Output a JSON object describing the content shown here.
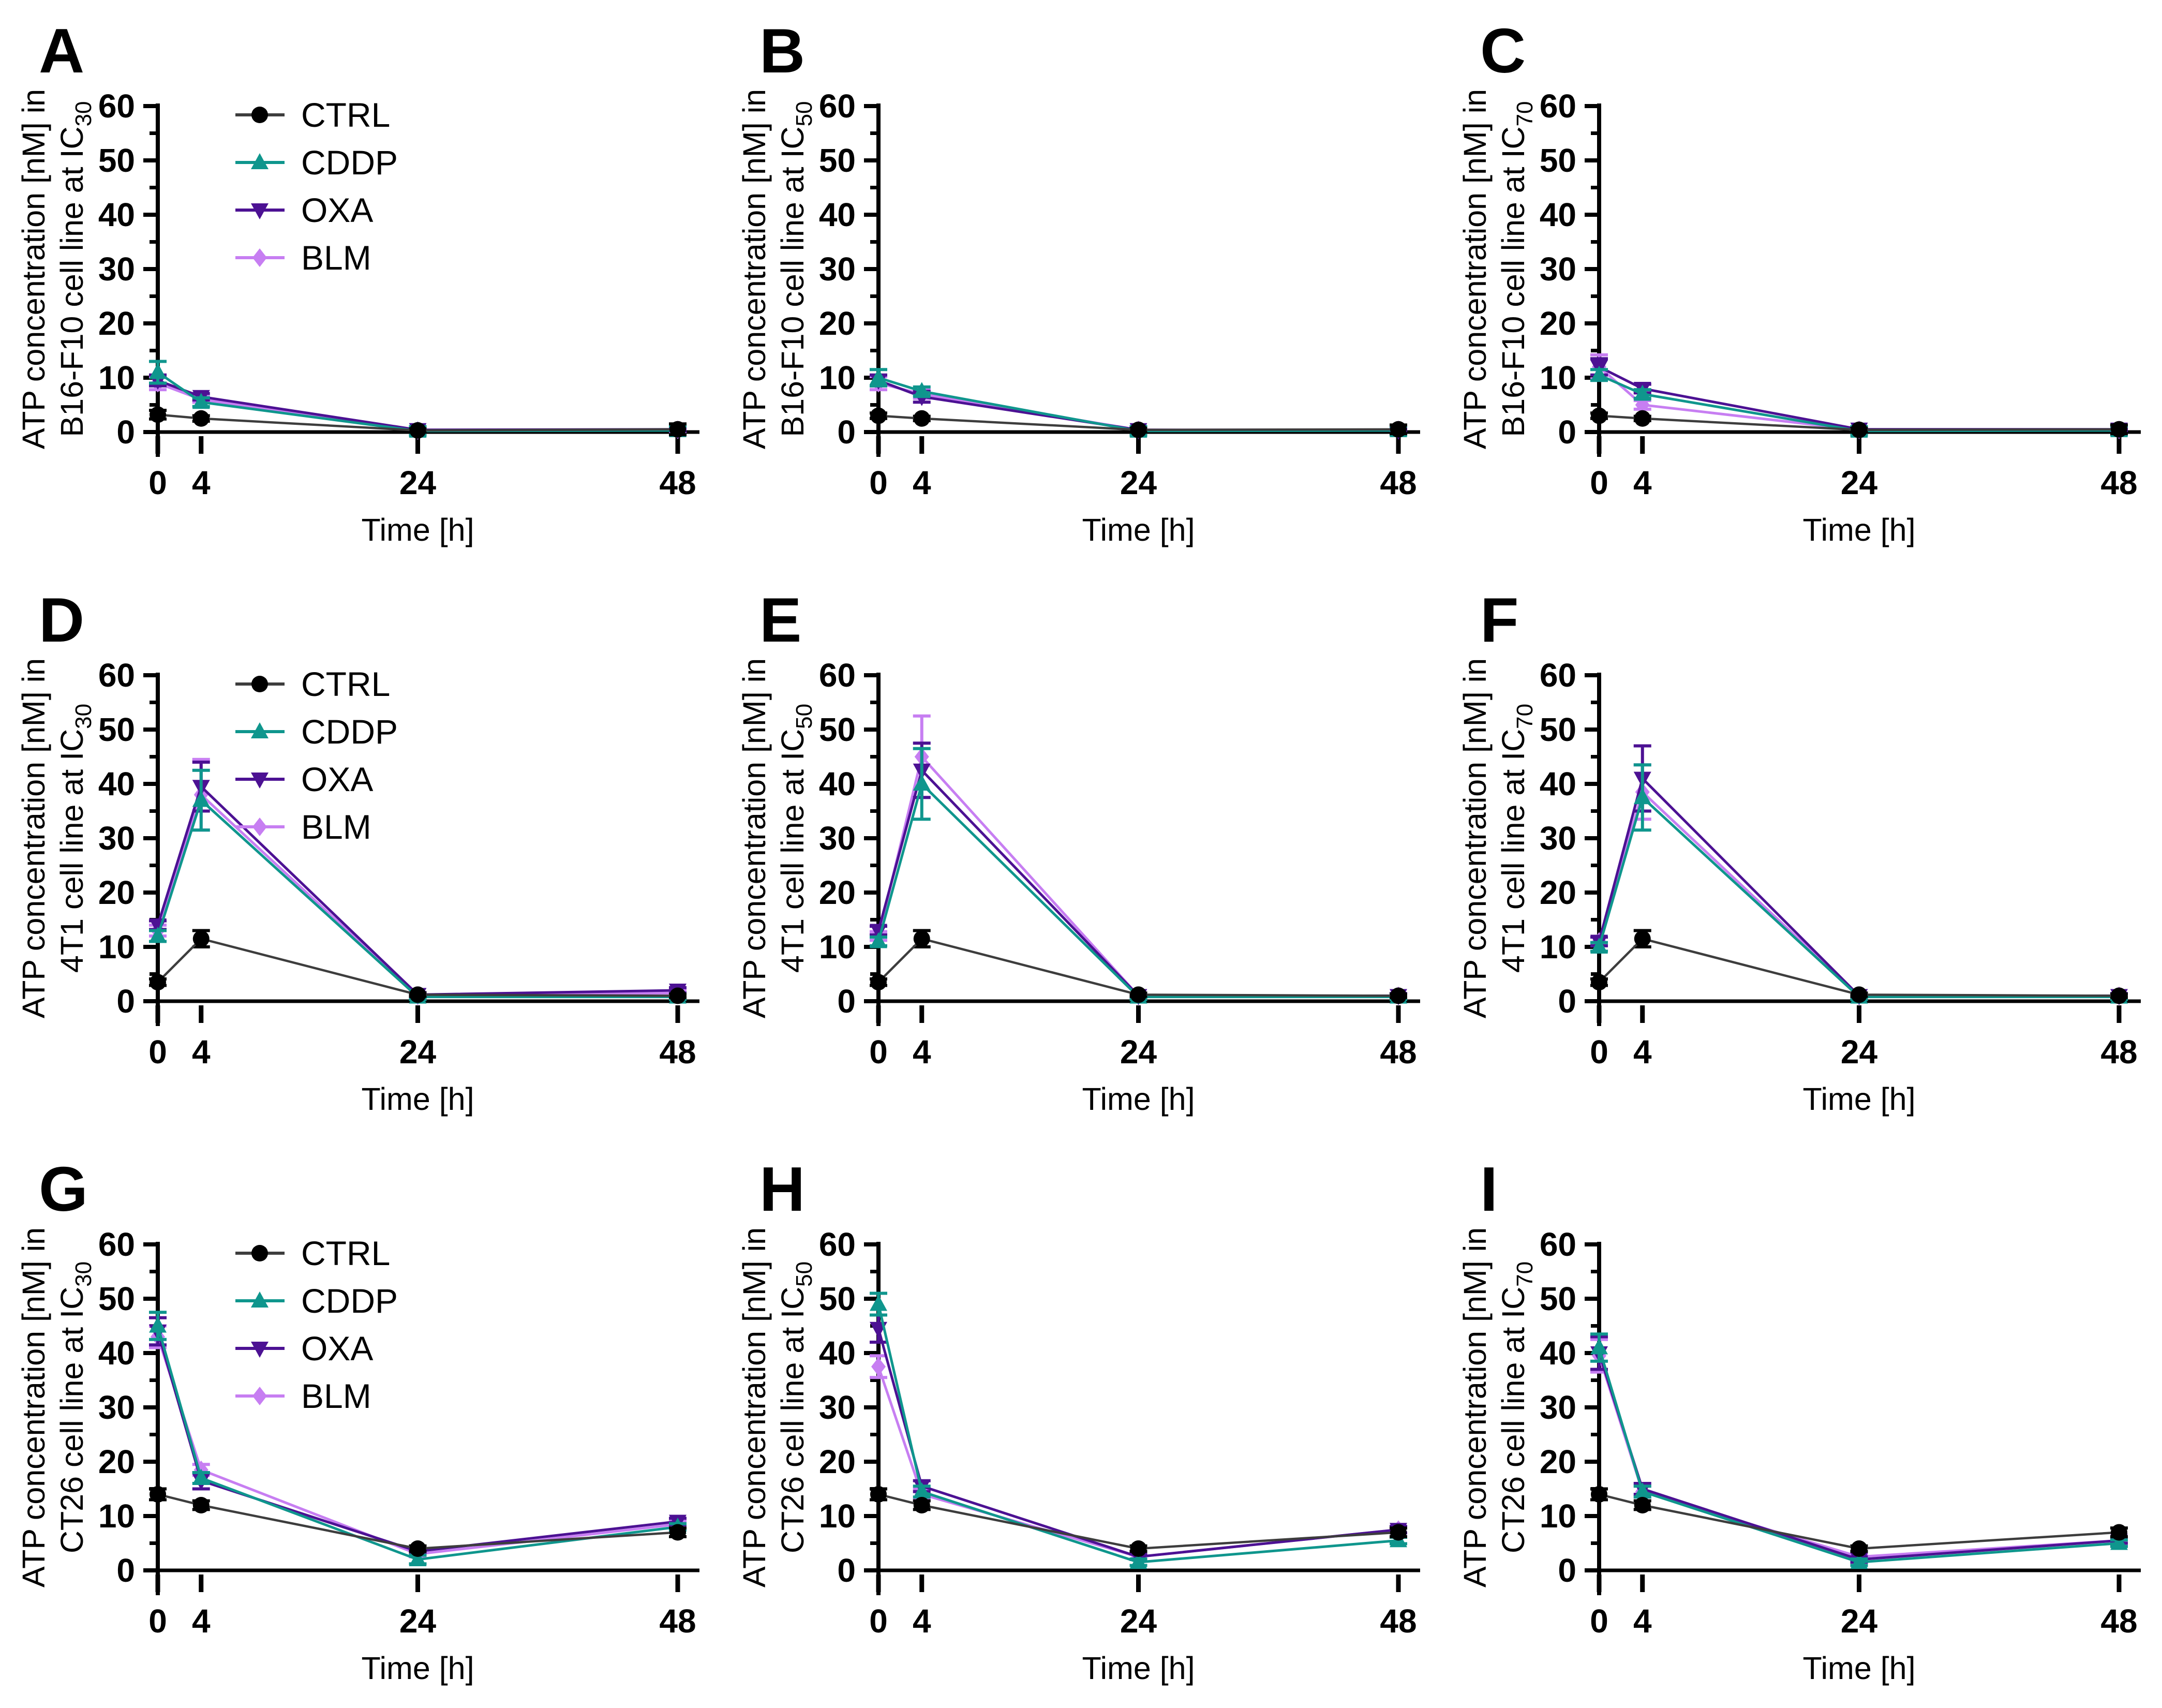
{
  "figure": {
    "background": "#ffffff",
    "xlabel": "Time [h]",
    "legend_items": [
      {
        "label": "CTRL",
        "color": "#000000",
        "marker": "circle"
      },
      {
        "label": "CDDP",
        "color": "#0f968d",
        "marker": "triangle-up"
      },
      {
        "label": "OXA",
        "color": "#4c1193",
        "marker": "triangle-down"
      },
      {
        "label": "BLM",
        "color": "#c77ef2",
        "marker": "diamond"
      }
    ]
  },
  "chart_data": [
    {
      "type": "line",
      "panel": "A",
      "ylabel_line1": "ATP concentration [nM] in",
      "ylabel_line2": "B16-F10 cell line at IC",
      "ic_subscript": "30",
      "xlabel": "Time [h]",
      "x": [
        0,
        4,
        24,
        48
      ],
      "xlim": [
        0,
        48
      ],
      "ylim": [
        0,
        60
      ],
      "yticks": [
        0,
        10,
        20,
        30,
        40,
        50,
        60
      ],
      "xticks": [
        0,
        4,
        24,
        48
      ],
      "legend": true,
      "series": [
        {
          "name": "CTRL",
          "marker": "circle",
          "color": "#000000",
          "line_color": "#3d3d3d",
          "values": [
            3.2,
            2.5,
            0.3,
            0.5
          ],
          "errors": [
            0.8,
            0.5,
            0.3,
            1.0
          ]
        },
        {
          "name": "CDDP",
          "marker": "triangle-up",
          "color": "#0f968d",
          "values": [
            11.0,
            5.5,
            0.2,
            0.3
          ],
          "errors": [
            2.0,
            0.8,
            0.8,
            0.8
          ]
        },
        {
          "name": "OXA",
          "marker": "triangle-down",
          "color": "#4c1193",
          "values": [
            9.5,
            6.5,
            0.4,
            0.5
          ],
          "errors": [
            1.0,
            0.6,
            0.3,
            0.3
          ]
        },
        {
          "name": "BLM",
          "marker": "diamond",
          "color": "#c77ef2",
          "values": [
            9.0,
            6.0,
            0.3,
            0.4
          ],
          "errors": [
            1.2,
            0.5,
            0.3,
            0.3
          ]
        }
      ]
    },
    {
      "type": "line",
      "panel": "B",
      "ylabel_line1": "ATP concentration [nM] in",
      "ylabel_line2": "B16-F10 cell line at IC",
      "ic_subscript": "50",
      "xlabel": "Time [h]",
      "x": [
        0,
        4,
        24,
        48
      ],
      "xlim": [
        0,
        48
      ],
      "ylim": [
        0,
        60
      ],
      "yticks": [
        0,
        10,
        20,
        30,
        40,
        50,
        60
      ],
      "xticks": [
        0,
        4,
        24,
        48
      ],
      "legend": false,
      "series": [
        {
          "name": "CTRL",
          "marker": "circle",
          "color": "#000000",
          "line_color": "#3d3d3d",
          "values": [
            3.0,
            2.5,
            0.4,
            0.5
          ],
          "errors": [
            0.5,
            0.4,
            0.3,
            0.8
          ]
        },
        {
          "name": "CDDP",
          "marker": "triangle-up",
          "color": "#0f968d",
          "values": [
            10.0,
            7.5,
            0.2,
            0.3
          ],
          "errors": [
            1.5,
            0.8,
            0.8,
            0.8
          ]
        },
        {
          "name": "OXA",
          "marker": "triangle-down",
          "color": "#4c1193",
          "values": [
            9.5,
            6.5,
            0.4,
            0.3
          ],
          "errors": [
            1.0,
            1.0,
            0.3,
            0.3
          ]
        },
        {
          "name": "BLM",
          "marker": "diamond",
          "color": "#c77ef2",
          "values": [
            9.0,
            7.0,
            0.4,
            0.4
          ],
          "errors": [
            1.2,
            0.8,
            0.3,
            0.3
          ]
        }
      ]
    },
    {
      "type": "line",
      "panel": "C",
      "ylabel_line1": "ATP concentration [nM] in",
      "ylabel_line2": "B16-F10 cell line at IC",
      "ic_subscript": "70",
      "xlabel": "Time [h]",
      "x": [
        0,
        4,
        24,
        48
      ],
      "xlim": [
        0,
        48
      ],
      "ylim": [
        0,
        60
      ],
      "yticks": [
        0,
        10,
        20,
        30,
        40,
        50,
        60
      ],
      "xticks": [
        0,
        4,
        24,
        48
      ],
      "legend": false,
      "series": [
        {
          "name": "CTRL",
          "marker": "circle",
          "color": "#000000",
          "line_color": "#3d3d3d",
          "values": [
            3.0,
            2.5,
            0.4,
            0.5
          ],
          "errors": [
            0.5,
            0.4,
            0.3,
            0.8
          ]
        },
        {
          "name": "CDDP",
          "marker": "triangle-up",
          "color": "#0f968d",
          "values": [
            10.5,
            7.0,
            0.2,
            0.3
          ],
          "errors": [
            1.0,
            0.8,
            0.8,
            0.8
          ]
        },
        {
          "name": "OXA",
          "marker": "triangle-down",
          "color": "#4c1193",
          "values": [
            12.0,
            8.0,
            0.5,
            0.5
          ],
          "errors": [
            1.5,
            0.8,
            0.3,
            0.3
          ]
        },
        {
          "name": "BLM",
          "marker": "diamond",
          "color": "#c77ef2",
          "values": [
            12.0,
            5.0,
            0.4,
            0.4
          ],
          "errors": [
            2.2,
            0.8,
            0.3,
            0.3
          ]
        }
      ]
    },
    {
      "type": "line",
      "panel": "D",
      "ylabel_line1": "ATP concentration [nM] in",
      "ylabel_line2": "4T1 cell line at IC",
      "ic_subscript": "30",
      "xlabel": "Time [h]",
      "x": [
        0,
        4,
        24,
        48
      ],
      "xlim": [
        0,
        48
      ],
      "ylim": [
        0,
        60
      ],
      "yticks": [
        0,
        10,
        20,
        30,
        40,
        50,
        60
      ],
      "xticks": [
        0,
        4,
        24,
        48
      ],
      "legend": true,
      "series": [
        {
          "name": "CTRL",
          "marker": "circle",
          "color": "#000000",
          "line_color": "#3d3d3d",
          "values": [
            3.5,
            11.5,
            1.2,
            1.0
          ],
          "errors": [
            0.6,
            1.5,
            0.3,
            0.3
          ]
        },
        {
          "name": "CDDP",
          "marker": "triangle-up",
          "color": "#0f968d",
          "values": [
            12.0,
            37.0,
            0.8,
            0.8
          ],
          "errors": [
            1.0,
            5.5,
            0.5,
            0.5
          ]
        },
        {
          "name": "OXA",
          "marker": "triangle-down",
          "color": "#4c1193",
          "values": [
            14.0,
            39.5,
            1.2,
            2.0
          ],
          "errors": [
            0.8,
            4.5,
            0.4,
            0.5
          ]
        },
        {
          "name": "BLM",
          "marker": "diamond",
          "color": "#c77ef2",
          "values": [
            13.0,
            38.0,
            1.0,
            1.5
          ],
          "errors": [
            1.0,
            6.5,
            0.4,
            0.5
          ]
        }
      ]
    },
    {
      "type": "line",
      "panel": "E",
      "ylabel_line1": "ATP concentration [nM] in",
      "ylabel_line2": "4T1 cell line at IC",
      "ic_subscript": "50",
      "xlabel": "Time [h]",
      "x": [
        0,
        4,
        24,
        48
      ],
      "xlim": [
        0,
        48
      ],
      "ylim": [
        0,
        60
      ],
      "yticks": [
        0,
        10,
        20,
        30,
        40,
        50,
        60
      ],
      "xticks": [
        0,
        4,
        24,
        48
      ],
      "legend": false,
      "series": [
        {
          "name": "CTRL",
          "marker": "circle",
          "color": "#000000",
          "line_color": "#3d3d3d",
          "values": [
            3.5,
            11.5,
            1.2,
            1.0
          ],
          "errors": [
            0.6,
            1.5,
            0.3,
            0.3
          ]
        },
        {
          "name": "CDDP",
          "marker": "triangle-up",
          "color": "#0f968d",
          "values": [
            11.0,
            40.0,
            0.8,
            0.8
          ],
          "errors": [
            0.8,
            6.5,
            0.5,
            0.5
          ]
        },
        {
          "name": "OXA",
          "marker": "triangle-down",
          "color": "#4c1193",
          "values": [
            13.0,
            42.5,
            1.0,
            1.0
          ],
          "errors": [
            0.8,
            5.0,
            0.4,
            0.4
          ]
        },
        {
          "name": "BLM",
          "marker": "diamond",
          "color": "#c77ef2",
          "values": [
            12.0,
            45.0,
            1.0,
            1.0
          ],
          "errors": [
            0.8,
            7.5,
            0.4,
            0.4
          ]
        }
      ]
    },
    {
      "type": "line",
      "panel": "F",
      "ylabel_line1": "ATP concentration [nM] in",
      "ylabel_line2": "4T1 cell line at IC",
      "ic_subscript": "70",
      "xlabel": "Time [h]",
      "x": [
        0,
        4,
        24,
        48
      ],
      "xlim": [
        0,
        48
      ],
      "ylim": [
        0,
        60
      ],
      "yticks": [
        0,
        10,
        20,
        30,
        40,
        50,
        60
      ],
      "xticks": [
        0,
        4,
        24,
        48
      ],
      "legend": false,
      "series": [
        {
          "name": "CTRL",
          "marker": "circle",
          "color": "#000000",
          "line_color": "#3d3d3d",
          "values": [
            3.5,
            11.5,
            1.2,
            1.0
          ],
          "errors": [
            0.6,
            1.5,
            0.3,
            0.3
          ]
        },
        {
          "name": "CDDP",
          "marker": "triangle-up",
          "color": "#0f968d",
          "values": [
            10.0,
            37.5,
            0.8,
            0.8
          ],
          "errors": [
            0.8,
            6.0,
            0.5,
            0.5
          ]
        },
        {
          "name": "OXA",
          "marker": "triangle-down",
          "color": "#4c1193",
          "values": [
            11.0,
            41.0,
            1.0,
            1.0
          ],
          "errors": [
            0.8,
            6.0,
            0.4,
            0.4
          ]
        },
        {
          "name": "BLM",
          "marker": "diamond",
          "color": "#c77ef2",
          "values": [
            11.0,
            38.5,
            1.0,
            1.0
          ],
          "errors": [
            0.8,
            5.0,
            0.4,
            0.4
          ]
        }
      ]
    },
    {
      "type": "line",
      "panel": "G",
      "ylabel_line1": "ATP concentration [nM] in",
      "ylabel_line2": "CT26 cell line at IC",
      "ic_subscript": "30",
      "xlabel": "Time [h]",
      "x": [
        0,
        4,
        24,
        48
      ],
      "xlim": [
        0,
        48
      ],
      "ylim": [
        0,
        60
      ],
      "yticks": [
        0,
        10,
        20,
        30,
        40,
        50,
        60
      ],
      "xticks": [
        0,
        4,
        24,
        48
      ],
      "legend": true,
      "series": [
        {
          "name": "CTRL",
          "marker": "circle",
          "color": "#000000",
          "line_color": "#3d3d3d",
          "values": [
            14.0,
            12.0,
            4.0,
            7.0
          ],
          "errors": [
            1.0,
            0.8,
            0.5,
            0.8
          ]
        },
        {
          "name": "CDDP",
          "marker": "triangle-up",
          "color": "#0f968d",
          "values": [
            45.0,
            17.0,
            2.0,
            8.0
          ],
          "errors": [
            2.5,
            1.0,
            0.8,
            0.6
          ]
        },
        {
          "name": "OXA",
          "marker": "triangle-down",
          "color": "#4c1193",
          "values": [
            44.0,
            16.5,
            3.5,
            9.0
          ],
          "errors": [
            2.5,
            1.5,
            0.5,
            0.6
          ]
        },
        {
          "name": "BLM",
          "marker": "diamond",
          "color": "#c77ef2",
          "values": [
            43.0,
            18.5,
            3.0,
            8.5
          ],
          "errors": [
            2.0,
            1.0,
            0.5,
            0.6
          ]
        }
      ]
    },
    {
      "type": "line",
      "panel": "H",
      "ylabel_line1": "ATP concentration [nM] in",
      "ylabel_line2": "CT26 cell line at IC",
      "ic_subscript": "50",
      "xlabel": "Time [h]",
      "x": [
        0,
        4,
        24,
        48
      ],
      "xlim": [
        0,
        48
      ],
      "ylim": [
        0,
        60
      ],
      "yticks": [
        0,
        10,
        20,
        30,
        40,
        50,
        60
      ],
      "xticks": [
        0,
        4,
        24,
        48
      ],
      "legend": false,
      "series": [
        {
          "name": "CTRL",
          "marker": "circle",
          "color": "#000000",
          "line_color": "#3d3d3d",
          "values": [
            14.0,
            12.0,
            4.0,
            7.0
          ],
          "errors": [
            1.0,
            0.8,
            0.5,
            0.8
          ]
        },
        {
          "name": "CDDP",
          "marker": "triangle-up",
          "color": "#0f968d",
          "values": [
            49.0,
            14.5,
            1.5,
            5.5
          ],
          "errors": [
            2.0,
            1.0,
            0.6,
            0.6
          ]
        },
        {
          "name": "OXA",
          "marker": "triangle-down",
          "color": "#4c1193",
          "values": [
            44.5,
            15.5,
            2.5,
            7.5
          ],
          "errors": [
            2.5,
            1.0,
            0.5,
            0.6
          ]
        },
        {
          "name": "BLM",
          "marker": "diamond",
          "color": "#c77ef2",
          "values": [
            37.5,
            14.0,
            2.5,
            7.5
          ],
          "errors": [
            2.0,
            1.0,
            0.5,
            0.6
          ]
        }
      ]
    },
    {
      "type": "line",
      "panel": "I",
      "ylabel_line1": "ATP concentration [nM] in",
      "ylabel_line2": "CT26 cell line at IC",
      "ic_subscript": "70",
      "xlabel": "Time [h]",
      "x": [
        0,
        4,
        24,
        48
      ],
      "xlim": [
        0,
        48
      ],
      "ylim": [
        0,
        60
      ],
      "yticks": [
        0,
        10,
        20,
        30,
        40,
        50,
        60
      ],
      "xticks": [
        0,
        4,
        24,
        48
      ],
      "legend": false,
      "series": [
        {
          "name": "CTRL",
          "marker": "circle",
          "color": "#000000",
          "line_color": "#3d3d3d",
          "values": [
            14.0,
            12.0,
            4.0,
            7.0
          ],
          "errors": [
            1.0,
            0.8,
            0.5,
            0.8
          ]
        },
        {
          "name": "CDDP",
          "marker": "triangle-up",
          "color": "#0f968d",
          "values": [
            41.0,
            14.5,
            1.5,
            5.0
          ],
          "errors": [
            2.5,
            1.0,
            0.6,
            0.6
          ]
        },
        {
          "name": "OXA",
          "marker": "triangle-down",
          "color": "#4c1193",
          "values": [
            40.0,
            15.0,
            2.0,
            5.5
          ],
          "errors": [
            3.0,
            1.0,
            0.5,
            0.5
          ]
        },
        {
          "name": "BLM",
          "marker": "diamond",
          "color": "#c77ef2",
          "values": [
            39.5,
            14.5,
            2.5,
            5.5
          ],
          "errors": [
            3.0,
            1.0,
            0.5,
            0.5
          ]
        }
      ]
    }
  ]
}
